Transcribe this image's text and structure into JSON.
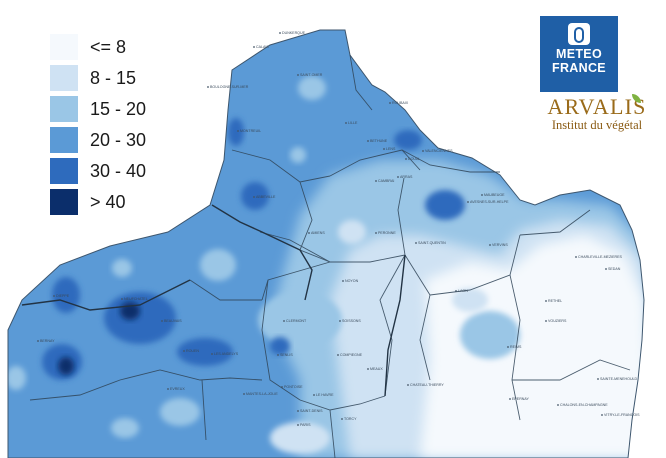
{
  "legend": {
    "items": [
      {
        "label": "<= 8",
        "color": "#f5f9fd"
      },
      {
        "label": "8 - 15",
        "color": "#cfe2f3"
      },
      {
        "label": "15 - 20",
        "color": "#9ac6e6"
      },
      {
        "label": "20 - 30",
        "color": "#5b9ad6"
      },
      {
        "label": "30 - 40",
        "color": "#2e6bbd"
      },
      {
        "label": "> 40",
        "color": "#0b2e6b"
      }
    ]
  },
  "logos": {
    "meteo_france": {
      "line1": "METEO",
      "line2": "FRANCE",
      "color": "#1f5fa6"
    },
    "arvalis": {
      "name": "ARVALIS",
      "subtitle": "Institut du végétal"
    }
  },
  "places": [
    "DUNKERQUE",
    "CALAIS",
    "BOULOGNE-SUR-MER",
    "SAINT-OMER",
    "LILLE",
    "ROUBAIX",
    "MONTREUIL",
    "BETHUNE",
    "LENS",
    "DOUAI",
    "VALENCIENNES",
    "ARRAS",
    "CAMBRAI",
    "ABBEVILLE",
    "MAUBEUGE",
    "AVESNES-SUR-HELPE",
    "AMIENS",
    "PERONNE",
    "SAINT-QUENTIN",
    "VERVINS",
    "NOYON",
    "LAON",
    "CHARLEVILLE-MEZIERES",
    "SEDAN",
    "RETHEL",
    "VOUZIERS",
    "BEAUVAIS",
    "CLERMONT",
    "SOISSONS",
    "SENLIS",
    "REIMS",
    "COMPIEGNE",
    "EPERNAY",
    "CHATEAU-THIERRY",
    "CHALONS-EN-CHAMPAGNE",
    "SAINTE-MENEHOULD",
    "PONTOISE",
    "MEAUX",
    "VITRY-LE-FRANCOIS",
    "DIEPPE",
    "NEUFCHATEL",
    "MANTES-LA-JOLIE",
    "ROUEN",
    "LES ANDELYS",
    "EVREUX",
    "BERNAY",
    "LE HAVRE",
    "SAINT-DENIS",
    "PARIS",
    "TORCY"
  ]
}
